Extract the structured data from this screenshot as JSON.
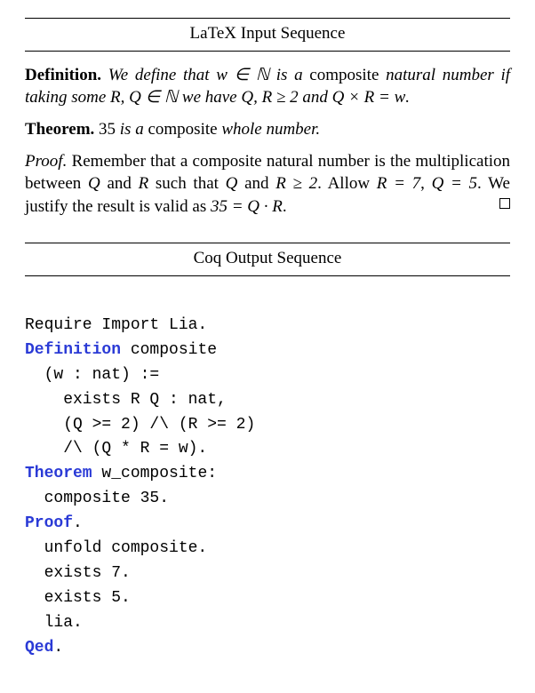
{
  "section1": {
    "title": "LaTeX Input Sequence"
  },
  "definition": {
    "label": "Definition.",
    "t1": "We define that ",
    "expr1": "w ∈ ℕ",
    "t2": " is a ",
    "word_composite": "composite",
    "t3": " natural number if taking some ",
    "expr2": "R, Q ∈ ℕ",
    "t4": " we have ",
    "expr3": "Q, R ≥ 2",
    "t5": " and ",
    "expr4": "Q × R = w",
    "t6": "."
  },
  "theorem": {
    "label": "Theorem.",
    "t1": " ",
    "num": "35",
    "t2": " is a ",
    "word_composite": "composite",
    "t3": " whole number."
  },
  "proof": {
    "label": "Proof.",
    "t1": "Remember that a composite natural number is the multiplication between ",
    "Q": "Q",
    "t2": " and ",
    "R": "R",
    "t3": " such that ",
    "Q2": "Q",
    "t4": " and ",
    "Rge": "R ≥ 2",
    "t5": ". Allow ",
    "r7": "R = 7",
    "t6": ", ",
    "q5": "Q = 5",
    "t7": ". We justify the result is valid as ",
    "eq": "35 = Q · R",
    "t8": "."
  },
  "section2": {
    "title": "Coq Output Sequence"
  },
  "code": {
    "l1": "Require Import Lia.",
    "kw_def": "Definition",
    "l2b": " composite",
    "l3": "  (w : nat) :=",
    "l4": "    exists R Q : nat,",
    "l5": "    (Q >= 2) /\\ (R >= 2)",
    "l6": "    /\\ (Q * R = w).",
    "kw_thm": "Theorem",
    "l7b": " w_composite:",
    "l8": "  composite 35.",
    "kw_proof": "Proof",
    "dot1": ".",
    "l10": "  unfold composite.",
    "l11": "  exists 7.",
    "l12": "  exists 5.",
    "l13": "  lia.",
    "kw_qed": "Qed",
    "dot2": "."
  }
}
